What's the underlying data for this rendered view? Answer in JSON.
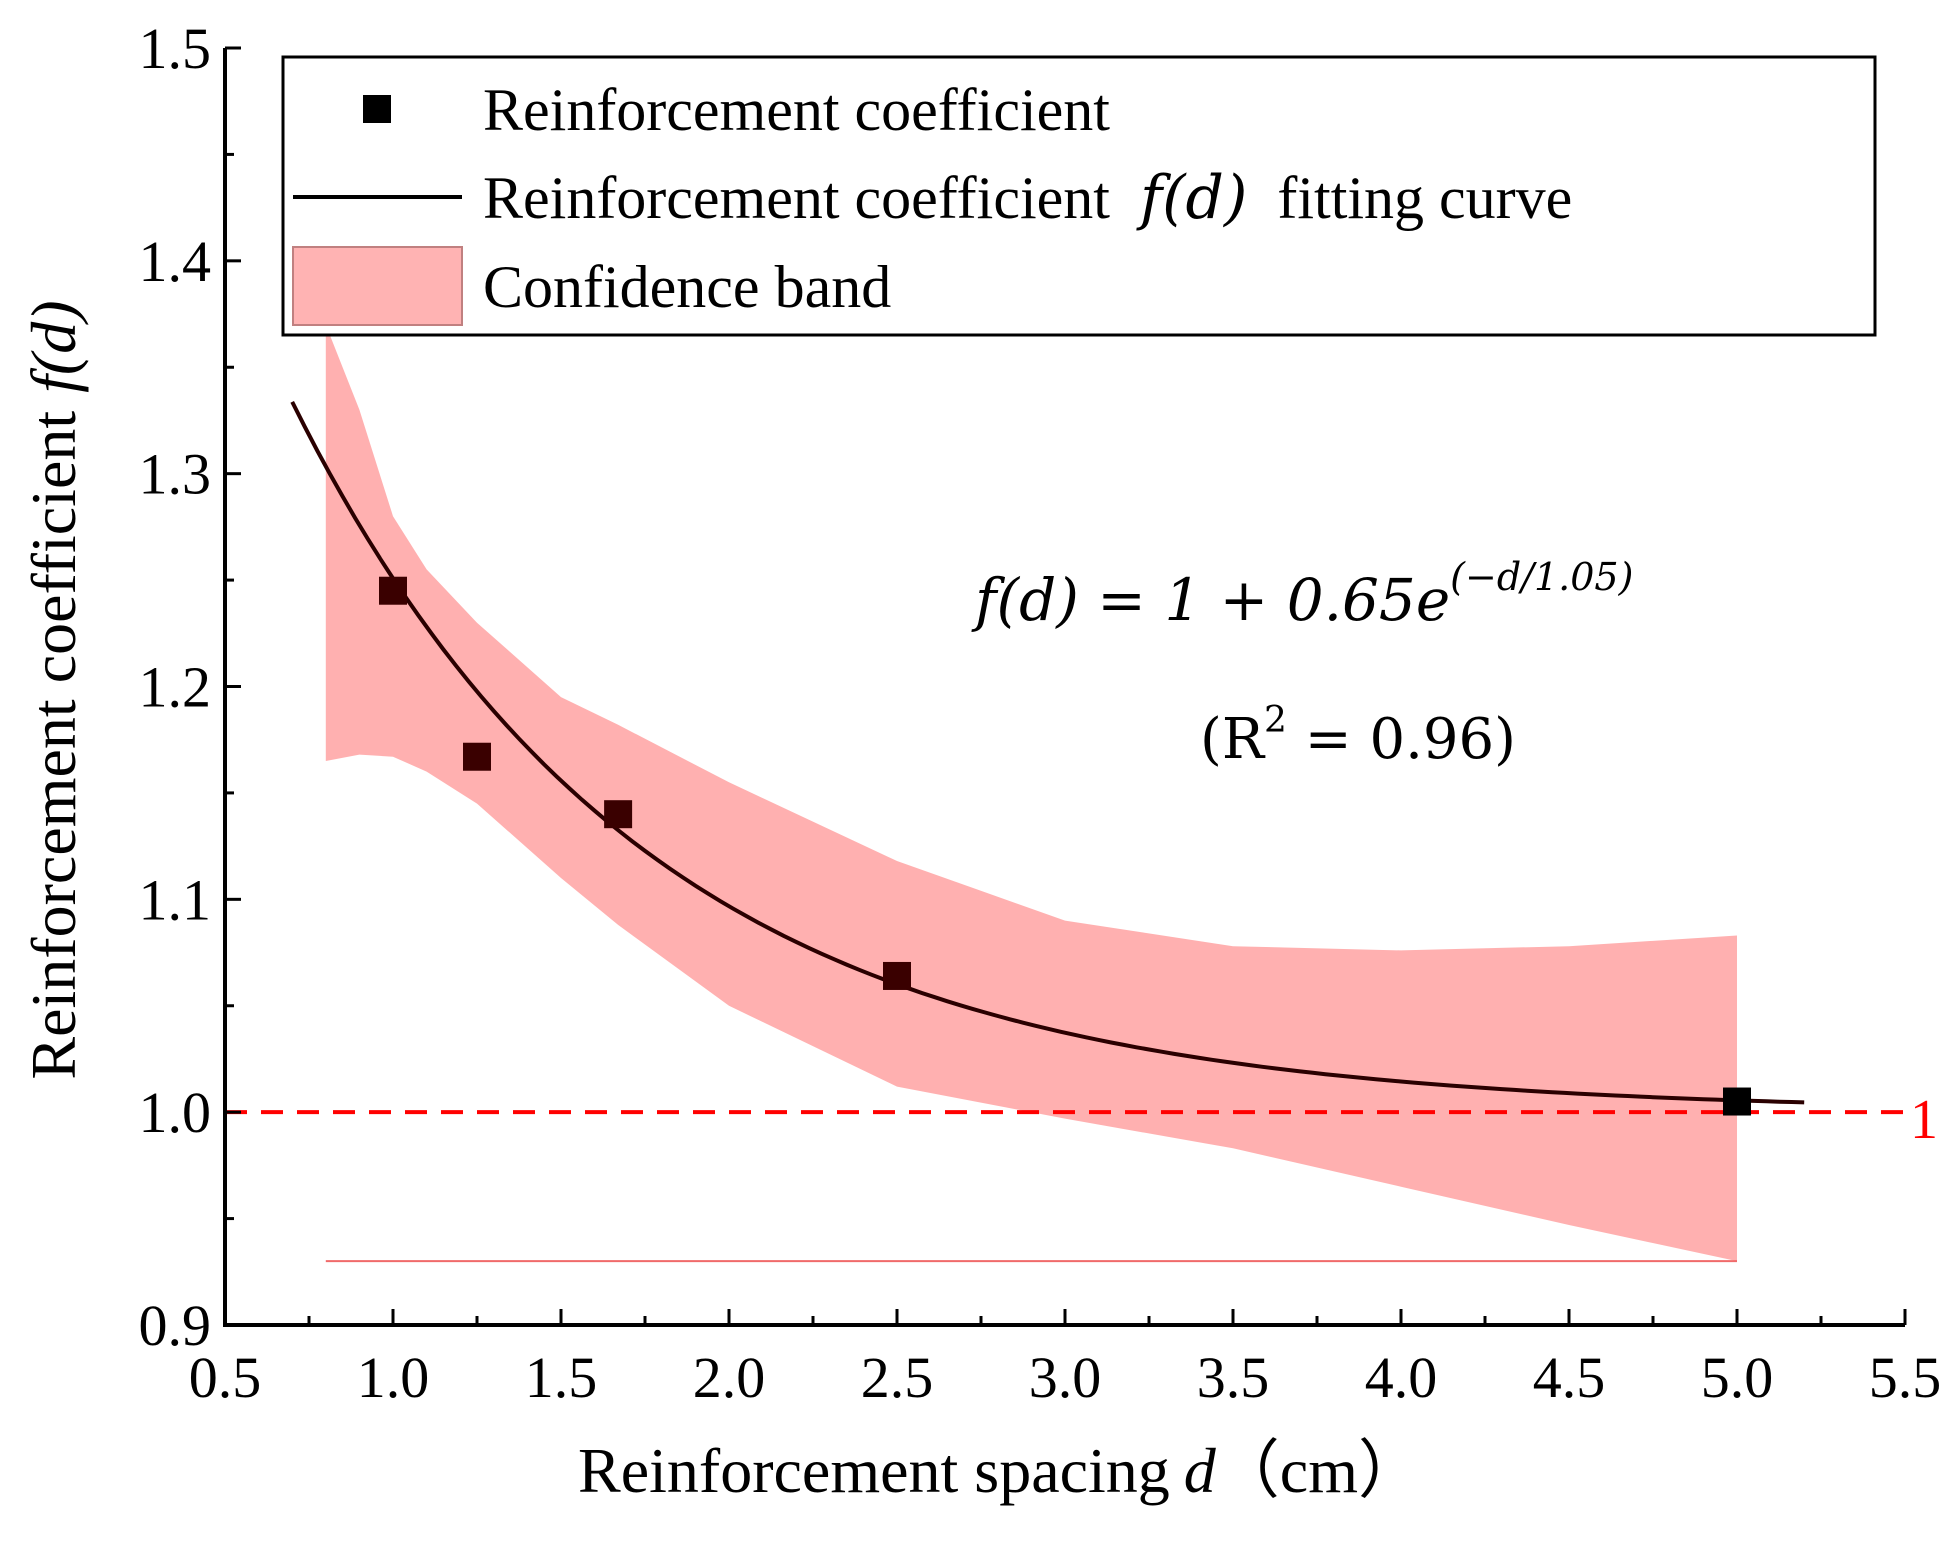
{
  "chart_data": {
    "type": "scatter",
    "xlabel": "Reinforcement spacing",
    "xlabel_var": "d",
    "xlabel_unit": "（cm）",
    "ylabel": "Reinforcement coefficient",
    "ylabel_var": "f(d)",
    "xlim": [
      0.5,
      5.5
    ],
    "ylim": [
      0.9,
      1.5
    ],
    "x_ticks": [
      0.5,
      1.0,
      1.5,
      2.0,
      2.5,
      3.0,
      3.5,
      4.0,
      4.5,
      5.0,
      5.5
    ],
    "y_ticks": [
      0.9,
      1.0,
      1.1,
      1.2,
      1.3,
      1.4,
      1.5
    ],
    "x_tick_labels": [
      "0.5",
      "1.0",
      "1.5",
      "2.0",
      "2.5",
      "3.0",
      "3.5",
      "4.0",
      "4.5",
      "5.0",
      "5.5"
    ],
    "y_tick_labels": [
      "0.9",
      "1.0",
      "1.1",
      "1.2",
      "1.3",
      "1.4",
      "1.5"
    ],
    "points": {
      "name": "Reinforcement coefficient",
      "x": [
        1.0,
        1.25,
        1.67,
        2.5,
        5.0
      ],
      "y": [
        1.245,
        1.167,
        1.14,
        1.064,
        1.005
      ]
    },
    "fit": {
      "name_prefix": "Reinforcement coefficient",
      "name_var": "f(d)",
      "name_suffix": "fitting curve",
      "a": 0.65,
      "t": 1.05,
      "x_range": [
        0.7,
        5.2
      ]
    },
    "band": {
      "name": "Confidence band",
      "x": [
        0.8,
        0.9,
        1.0,
        1.1,
        1.25,
        1.5,
        1.67,
        2.0,
        2.5,
        3.0,
        3.5,
        4.0,
        4.5,
        5.0
      ],
      "upper": [
        1.37,
        1.33,
        1.28,
        1.255,
        1.23,
        1.195,
        1.182,
        1.155,
        1.118,
        1.09,
        1.078,
        1.076,
        1.078,
        1.083
      ],
      "lower": [
        1.165,
        1.168,
        1.167,
        1.16,
        1.145,
        1.11,
        1.088,
        1.05,
        1.012,
        0.997,
        0.983,
        0.965,
        0.947,
        0.93
      ],
      "base": 0.93
    },
    "reference_line": {
      "y": 1.0,
      "label": "1",
      "color": "#ff0000"
    },
    "equation": {
      "lhs": "f(d) = 1 + 0.65e",
      "exponent": "(−d/1.05)",
      "r2_open": "(R",
      "r2_sup": "2",
      "r2_close": " = 0.96)"
    },
    "legend_position": "top",
    "colors": {
      "points": "#000000",
      "fit": "#2a0000",
      "band": "#ff8080",
      "band_edge": "#f06a6a",
      "reference": "#ff0000"
    }
  }
}
